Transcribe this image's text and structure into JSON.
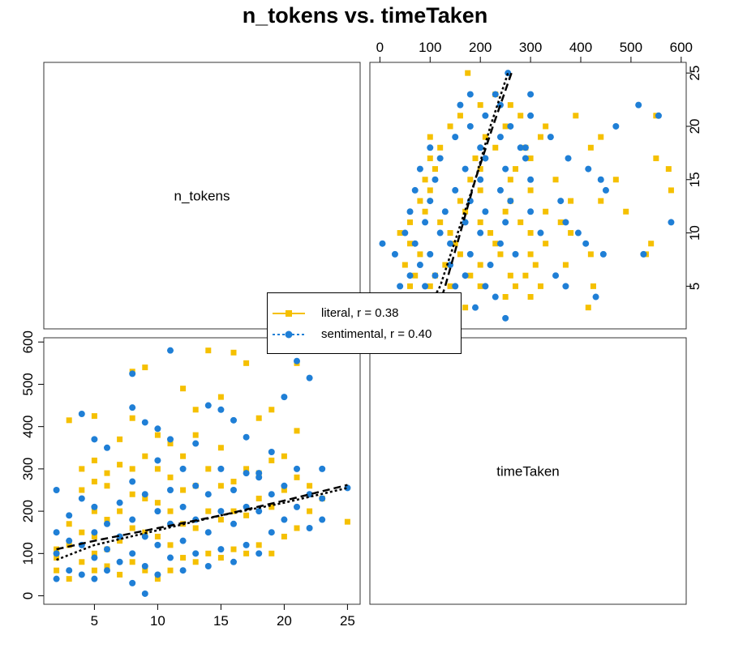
{
  "chart_data": {
    "type": "scatter",
    "title": "n_tokens vs. timeTaken",
    "variables": [
      "n_tokens",
      "timeTaken"
    ],
    "axes": {
      "n_tokens": {
        "range": [
          1,
          26
        ],
        "ticks": [
          5,
          10,
          15,
          20,
          25
        ]
      },
      "timeTaken": {
        "range": [
          -20,
          610
        ],
        "ticks": [
          0,
          100,
          200,
          300,
          400,
          500,
          600
        ]
      }
    },
    "grid": false,
    "legend_position": "center",
    "colors": {
      "literal": "#F5C000",
      "sentimental": "#1F7FD6"
    },
    "series": [
      {
        "name": "literal",
        "label": "literal, r = 0.38",
        "marker": "square",
        "color": "#F5C000",
        "line_style": "dashed",
        "trend": {
          "x": [
            2,
            5,
            10,
            15,
            20,
            25
          ],
          "y": [
            110,
            130,
            160,
            190,
            225,
            262
          ]
        },
        "points": [
          [
            2,
            60
          ],
          [
            2,
            90
          ],
          [
            2,
            110
          ],
          [
            3,
            40
          ],
          [
            3,
            120
          ],
          [
            3,
            170
          ],
          [
            3,
            415
          ],
          [
            4,
            80
          ],
          [
            4,
            150
          ],
          [
            4,
            250
          ],
          [
            4,
            300
          ],
          [
            5,
            60
          ],
          [
            5,
            100
          ],
          [
            5,
            140
          ],
          [
            5,
            200
          ],
          [
            5,
            270
          ],
          [
            5,
            320
          ],
          [
            5,
            425
          ],
          [
            6,
            70
          ],
          [
            6,
            110
          ],
          [
            6,
            180
          ],
          [
            6,
            260
          ],
          [
            6,
            290
          ],
          [
            7,
            50
          ],
          [
            7,
            130
          ],
          [
            7,
            200
          ],
          [
            7,
            310
          ],
          [
            7,
            370
          ],
          [
            8,
            80
          ],
          [
            8,
            160
          ],
          [
            8,
            240
          ],
          [
            8,
            300
          ],
          [
            8,
            420
          ],
          [
            8,
            530
          ],
          [
            9,
            60
          ],
          [
            9,
            150
          ],
          [
            9,
            230
          ],
          [
            9,
            330
          ],
          [
            9,
            540
          ],
          [
            10,
            40
          ],
          [
            10,
            140
          ],
          [
            10,
            220
          ],
          [
            10,
            300
          ],
          [
            10,
            380
          ],
          [
            11,
            60
          ],
          [
            11,
            120
          ],
          [
            11,
            200
          ],
          [
            11,
            280
          ],
          [
            11,
            360
          ],
          [
            12,
            90
          ],
          [
            12,
            170
          ],
          [
            12,
            250
          ],
          [
            12,
            330
          ],
          [
            12,
            490
          ],
          [
            13,
            80
          ],
          [
            13,
            160
          ],
          [
            13,
            260
          ],
          [
            13,
            380
          ],
          [
            13,
            440
          ],
          [
            14,
            100
          ],
          [
            14,
            200
          ],
          [
            14,
            300
          ],
          [
            14,
            580
          ],
          [
            15,
            90
          ],
          [
            15,
            180
          ],
          [
            15,
            260
          ],
          [
            15,
            350
          ],
          [
            15,
            470
          ],
          [
            16,
            110
          ],
          [
            16,
            200
          ],
          [
            16,
            270
          ],
          [
            16,
            575
          ],
          [
            17,
            100
          ],
          [
            17,
            190
          ],
          [
            17,
            300
          ],
          [
            17,
            550
          ],
          [
            18,
            120
          ],
          [
            18,
            230
          ],
          [
            18,
            290
          ],
          [
            18,
            420
          ],
          [
            19,
            100
          ],
          [
            19,
            210
          ],
          [
            19,
            320
          ],
          [
            19,
            440
          ],
          [
            20,
            140
          ],
          [
            20,
            250
          ],
          [
            20,
            330
          ],
          [
            21,
            160
          ],
          [
            21,
            280
          ],
          [
            21,
            390
          ],
          [
            21,
            550
          ],
          [
            22,
            200
          ],
          [
            22,
            260
          ],
          [
            23,
            230
          ],
          [
            25,
            175
          ]
        ]
      },
      {
        "name": "sentimental",
        "label": "sentimental, r = 0.40",
        "marker": "circle",
        "color": "#1F7FD6",
        "line_style": "dotted",
        "trend": {
          "x": [
            2,
            5,
            10,
            15,
            20,
            25
          ],
          "y": [
            85,
            120,
            155,
            190,
            220,
            255
          ]
        },
        "points": [
          [
            2,
            40
          ],
          [
            2,
            100
          ],
          [
            2,
            150
          ],
          [
            2,
            250
          ],
          [
            3,
            60
          ],
          [
            3,
            130
          ],
          [
            3,
            190
          ],
          [
            4,
            50
          ],
          [
            4,
            120
          ],
          [
            4,
            230
          ],
          [
            4,
            430
          ],
          [
            5,
            40
          ],
          [
            5,
            90
          ],
          [
            5,
            150
          ],
          [
            5,
            210
          ],
          [
            5,
            370
          ],
          [
            6,
            60
          ],
          [
            6,
            110
          ],
          [
            6,
            170
          ],
          [
            6,
            350
          ],
          [
            7,
            80
          ],
          [
            7,
            140
          ],
          [
            7,
            220
          ],
          [
            8,
            30
          ],
          [
            8,
            100
          ],
          [
            8,
            180
          ],
          [
            8,
            270
          ],
          [
            8,
            445
          ],
          [
            8,
            525
          ],
          [
            9,
            70
          ],
          [
            9,
            140
          ],
          [
            9,
            240
          ],
          [
            9,
            410
          ],
          [
            9,
            5
          ],
          [
            10,
            50
          ],
          [
            10,
            120
          ],
          [
            10,
            200
          ],
          [
            10,
            320
          ],
          [
            10,
            395
          ],
          [
            11,
            90
          ],
          [
            11,
            170
          ],
          [
            11,
            250
          ],
          [
            11,
            370
          ],
          [
            11,
            580
          ],
          [
            12,
            60
          ],
          [
            12,
            130
          ],
          [
            12,
            210
          ],
          [
            12,
            300
          ],
          [
            13,
            100
          ],
          [
            13,
            180
          ],
          [
            13,
            260
          ],
          [
            13,
            360
          ],
          [
            14,
            70
          ],
          [
            14,
            150
          ],
          [
            14,
            240
          ],
          [
            14,
            450
          ],
          [
            15,
            110
          ],
          [
            15,
            200
          ],
          [
            15,
            300
          ],
          [
            15,
            440
          ],
          [
            16,
            80
          ],
          [
            16,
            170
          ],
          [
            16,
            250
          ],
          [
            16,
            415
          ],
          [
            17,
            120
          ],
          [
            17,
            210
          ],
          [
            17,
            290
          ],
          [
            17,
            375
          ],
          [
            18,
            100
          ],
          [
            18,
            200
          ],
          [
            18,
            280
          ],
          [
            18,
            290
          ],
          [
            19,
            150
          ],
          [
            19,
            240
          ],
          [
            19,
            340
          ],
          [
            20,
            180
          ],
          [
            20,
            260
          ],
          [
            20,
            470
          ],
          [
            21,
            210
          ],
          [
            21,
            300
          ],
          [
            21,
            555
          ],
          [
            22,
            160
          ],
          [
            22,
            240
          ],
          [
            22,
            515
          ],
          [
            23,
            180
          ],
          [
            23,
            230
          ],
          [
            23,
            300
          ],
          [
            25,
            255
          ]
        ]
      }
    ]
  },
  "legend": {
    "literal_label": "literal, r = 0.38",
    "sentimental_label": "sentimental, r = 0.40"
  }
}
